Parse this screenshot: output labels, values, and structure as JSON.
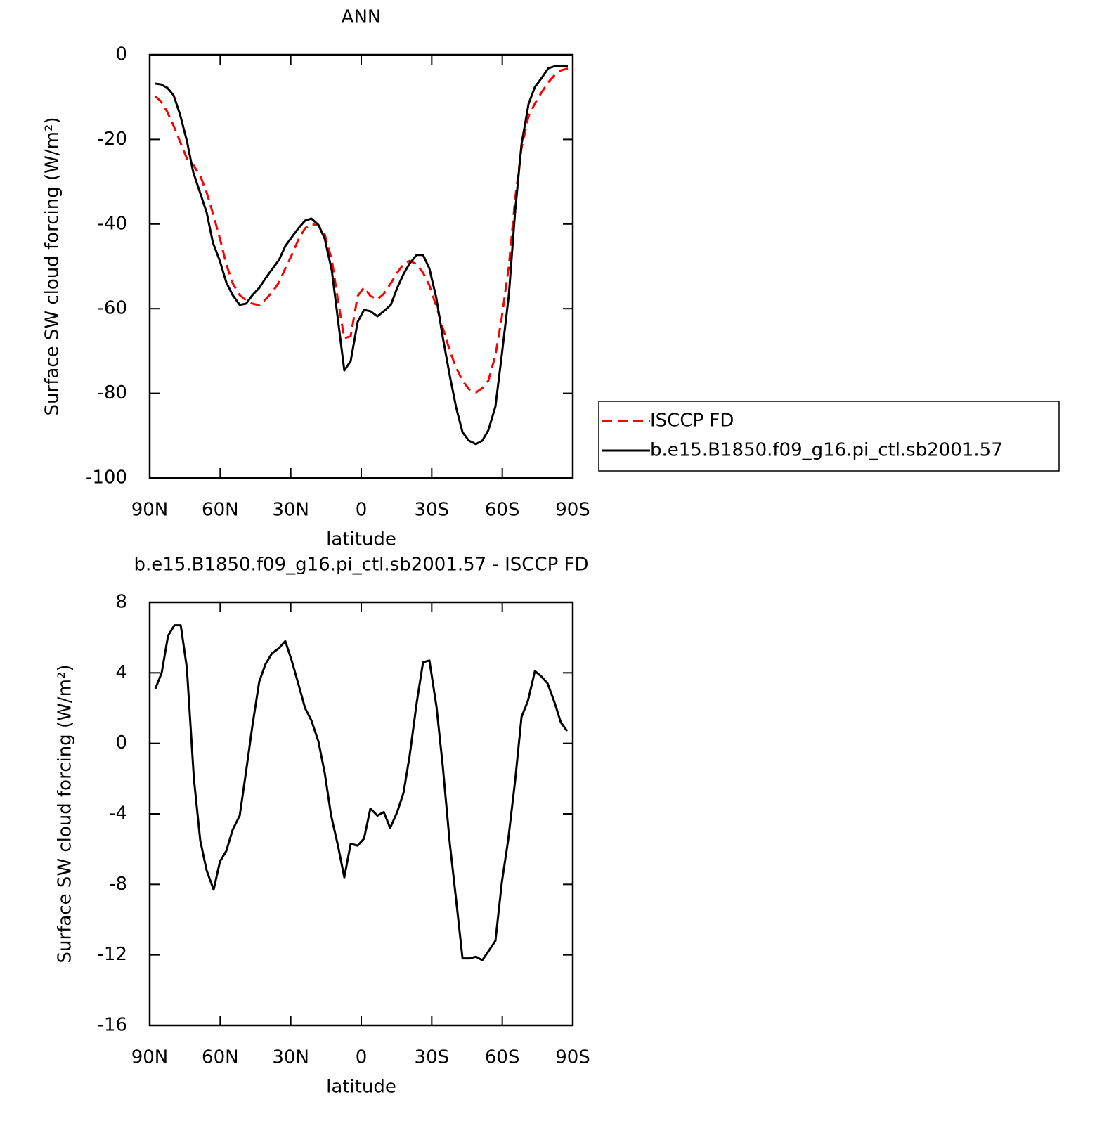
{
  "chart_data": [
    {
      "type": "line",
      "title": "ANN",
      "xlabel": "latitude",
      "ylabel": "Surface SW cloud forcing (W/m²)",
      "x": [
        87.6,
        85.2,
        82.5,
        79.8,
        77.1,
        74.2,
        71.5,
        68.5,
        65.8,
        63.1,
        60.1,
        57.4,
        54.7,
        51.7,
        49.0,
        46.3,
        43.4,
        40.7,
        37.7,
        35.0,
        32.3,
        29.3,
        26.6,
        23.9,
        21.2,
        18.2,
        15.5,
        12.5,
        9.9,
        7.2,
        4.5,
        1.5,
        -1.2,
        -3.9,
        -6.9,
        -9.6,
        -12.6,
        -15.3,
        -18.0,
        -20.6,
        -23.6,
        -26.3,
        -29.0,
        -32.0,
        -34.7,
        -37.7,
        -40.4,
        -43.1,
        -45.8,
        -48.8,
        -51.5,
        -54.1,
        -57.1,
        -59.8,
        -62.8,
        -65.5,
        -68.2,
        -71.2,
        -73.9,
        -76.6,
        -79.6,
        -82.3,
        -84.9,
        -87.9
      ],
      "series": [
        {
          "name": "ISCCP FD",
          "color": "#ff0000",
          "dashed": true,
          "values": [
            -9.8,
            -11.0,
            -13.5,
            -16.8,
            -20.5,
            -24.5,
            -26.0,
            -28.6,
            -32.5,
            -37.5,
            -43.5,
            -49.5,
            -54.0,
            -56.8,
            -58.0,
            -58.8,
            -59.2,
            -57.8,
            -56.0,
            -53.8,
            -50.5,
            -47.0,
            -43.5,
            -41.0,
            -40.0,
            -40.3,
            -42.5,
            -48.5,
            -58.0,
            -67.0,
            -66.5,
            -57.0,
            -55.0,
            -57.0,
            -57.8,
            -56.5,
            -54.0,
            -51.5,
            -49.5,
            -48.7,
            -49.5,
            -51.5,
            -54.5,
            -59.5,
            -64.5,
            -70.0,
            -74.0,
            -77.0,
            -79.0,
            -79.8,
            -78.8,
            -77.0,
            -71.0,
            -62.0,
            -50.0,
            -34.0,
            -22.0,
            -14.5,
            -11.5,
            -9.0,
            -6.5,
            -4.8,
            -3.7,
            -3.2
          ]
        },
        {
          "name": "b.e15.B1850.f09_g16.pi_ctl.sb2001.57",
          "color": "#000000",
          "dashed": false,
          "values": [
            -6.8,
            -7.0,
            -7.8,
            -9.6,
            -14.1,
            -20.3,
            -27.7,
            -32.7,
            -37.2,
            -44.4,
            -48.8,
            -53.8,
            -56.8,
            -59.1,
            -58.8,
            -56.8,
            -55.1,
            -52.8,
            -50.5,
            -48.5,
            -45.2,
            -42.9,
            -40.9,
            -39.2,
            -38.7,
            -40.2,
            -43.5,
            -51.0,
            -62.6,
            -74.6,
            -72.4,
            -63.1,
            -60.3,
            -60.6,
            -61.8,
            -60.6,
            -59.1,
            -55.1,
            -51.8,
            -49.3,
            -47.3,
            -47.3,
            -50.5,
            -57.6,
            -66.8,
            -75.9,
            -83.4,
            -89.2,
            -91.2,
            -92.0,
            -91.2,
            -88.7,
            -83.1,
            -70.9,
            -56.8,
            -36.9,
            -21.1,
            -11.6,
            -7.6,
            -5.6,
            -3.2,
            -2.7,
            -2.7,
            -2.7
          ]
        }
      ],
      "xlim": [
        90,
        -90
      ],
      "xticks": [
        {
          "value": 90,
          "label": "90N"
        },
        {
          "value": 60,
          "label": "60N"
        },
        {
          "value": 30,
          "label": "30N"
        },
        0,
        {
          "value": -30,
          "label": "30S"
        },
        {
          "value": -60,
          "label": "60S"
        },
        {
          "value": -90,
          "label": "90S"
        }
      ],
      "ylim": [
        -100,
        0
      ],
      "yticks": [
        -100,
        -80,
        -60,
        -40,
        -20,
        0
      ],
      "legend": "right"
    },
    {
      "type": "line",
      "title": "b.e15.B1850.f09_g16.pi_ctl.sb2001.57 - ISCCP FD",
      "xlabel": "latitude",
      "ylabel": "Surface SW cloud forcing (W/m²)",
      "x": [
        87.6,
        84.9,
        82.2,
        79.5,
        76.8,
        74.2,
        71.2,
        68.5,
        65.8,
        62.8,
        60.1,
        57.4,
        54.7,
        51.7,
        49.0,
        46.3,
        43.4,
        40.7,
        38.0,
        35.0,
        32.3,
        29.6,
        26.6,
        23.9,
        21.2,
        18.2,
        15.5,
        12.8,
        9.9,
        7.2,
        4.5,
        1.5,
        -1.2,
        -3.9,
        -6.9,
        -9.6,
        -12.3,
        -15.3,
        -18.0,
        -20.6,
        -23.6,
        -26.3,
        -29.0,
        -32.0,
        -34.7,
        -37.7,
        -40.4,
        -43.1,
        -46.1,
        -48.8,
        -51.5,
        -54.1,
        -57.1,
        -59.8,
        -62.5,
        -65.5,
        -68.2,
        -70.9,
        -73.9,
        -76.6,
        -79.3,
        -82.3,
        -84.9,
        -87.6
      ],
      "series": [
        {
          "color": "#000000",
          "dashed": false,
          "values": [
            3.1,
            4.0,
            6.1,
            6.7,
            6.7,
            4.3,
            -2.0,
            -5.5,
            -7.2,
            -8.3,
            -6.7,
            -6.1,
            -4.9,
            -4.1,
            -1.6,
            1.0,
            3.5,
            4.5,
            5.1,
            5.4,
            5.8,
            4.7,
            3.3,
            2.0,
            1.3,
            0.1,
            -1.7,
            -4.1,
            -5.8,
            -7.6,
            -5.7,
            -5.8,
            -5.4,
            -3.7,
            -4.1,
            -3.9,
            -4.8,
            -3.9,
            -2.8,
            -0.7,
            2.3,
            4.6,
            4.7,
            2.1,
            -1.3,
            -5.7,
            -8.9,
            -12.2,
            -12.2,
            -12.1,
            -12.3,
            -11.8,
            -11.2,
            -7.9,
            -5.5,
            -2.1,
            1.5,
            2.4,
            4.1,
            3.8,
            3.4,
            2.3,
            1.2,
            0.7
          ]
        }
      ],
      "xlim": [
        90,
        -90
      ],
      "xticks": [
        {
          "value": 90,
          "label": "90N"
        },
        {
          "value": 60,
          "label": "60N"
        },
        {
          "value": 30,
          "label": "30N"
        },
        0,
        {
          "value": -30,
          "label": "30S"
        },
        {
          "value": -60,
          "label": "60S"
        },
        {
          "value": -90,
          "label": "90S"
        }
      ],
      "ylim": [
        -16,
        8
      ],
      "yticks": [
        -16,
        -12,
        -8,
        -4,
        0,
        4,
        8
      ]
    }
  ]
}
